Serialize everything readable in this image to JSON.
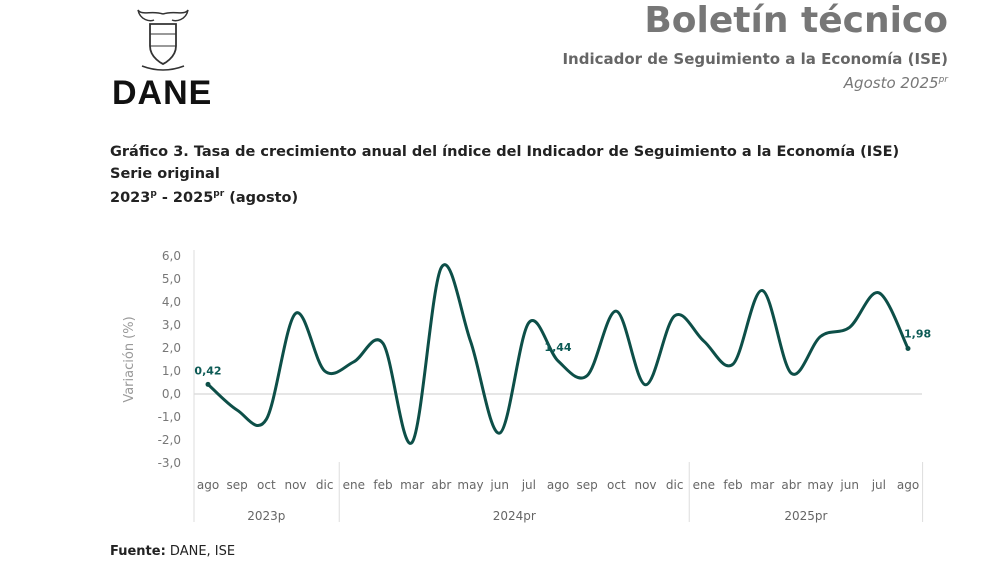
{
  "header": {
    "logo": "DANE",
    "title": "Boletín técnico",
    "subtitle": "Indicador de Seguimiento a la Economía (ISE)",
    "period": "Agosto 2025",
    "period_sup": "pr"
  },
  "chart_heading": {
    "line1": "Gráfico 3. Tasa de crecimiento anual del índice del Indicador de Seguimiento a la Economía (ISE)",
    "line2": "Serie original",
    "line3a": "2023",
    "line3a_sup": "p",
    "line3b": " - 2025",
    "line3b_sup": "pr",
    "line3c": " (agosto)"
  },
  "source": {
    "label": "Fuente:",
    "text": " DANE, ISE"
  },
  "chart_data": {
    "type": "line",
    "ylabel": "Variación (%)",
    "ylim": [
      -3,
      6
    ],
    "yticks": [
      "-3,0",
      "-2,0",
      "-1,0",
      "0,0",
      "1,0",
      "2,0",
      "3,0",
      "4,0",
      "5,0",
      "6,0"
    ],
    "categories": [
      "ago",
      "sep",
      "oct",
      "nov",
      "dic",
      "ene",
      "feb",
      "mar",
      "abr",
      "may",
      "jun",
      "jul",
      "ago",
      "sep",
      "oct",
      "nov",
      "dic",
      "ene",
      "feb",
      "mar",
      "abr",
      "may",
      "jun",
      "jul",
      "ago"
    ],
    "groups": [
      {
        "label": "2023p",
        "count": 5
      },
      {
        "label": "2024pr",
        "count": 12
      },
      {
        "label": "2025pr",
        "count": 8
      }
    ],
    "values": [
      0.42,
      -0.7,
      -1.1,
      3.5,
      1.0,
      1.4,
      2.2,
      -2.1,
      5.5,
      2.3,
      -1.7,
      3.1,
      1.44,
      0.8,
      3.6,
      0.4,
      3.4,
      2.3,
      1.3,
      4.5,
      0.9,
      2.5,
      2.9,
      4.4,
      1.98
    ],
    "data_labels": [
      {
        "index": 0,
        "text": "0,42"
      },
      {
        "index": 12,
        "text": "1,44"
      },
      {
        "index": 24,
        "text": "1,98"
      }
    ],
    "line_color": "#0d4f48",
    "grid": false
  }
}
